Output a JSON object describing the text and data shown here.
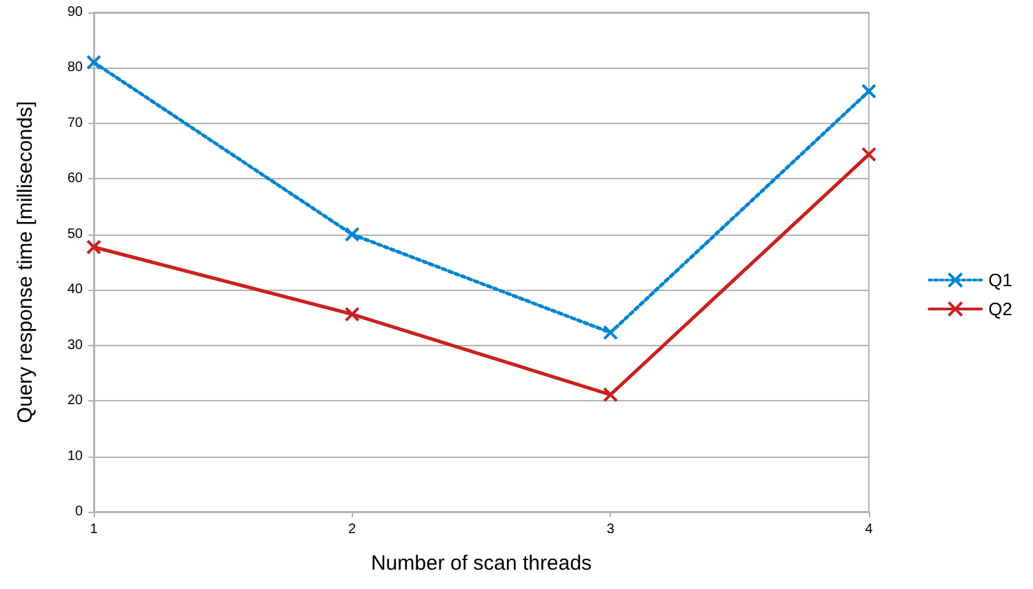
{
  "chart_data": {
    "type": "line",
    "xlabel": "Number of scan threads",
    "ylabel": "Query response time [milliseconds]",
    "x": [
      1,
      2,
      3,
      4
    ],
    "xlim": [
      1,
      4
    ],
    "xticks": [
      1,
      2,
      3,
      4
    ],
    "ylim": [
      0,
      90
    ],
    "yticks": [
      0,
      10,
      20,
      30,
      40,
      50,
      60,
      70,
      80,
      90
    ],
    "series": [
      {
        "name": "Q1",
        "color": "#0084d1",
        "values": [
          81,
          50,
          32.3,
          75.8
        ],
        "line_style": "dotted"
      },
      {
        "name": "Q2",
        "color": "#c9211e",
        "values": [
          47.7,
          35.6,
          21.1,
          64.4
        ],
        "line_style": "solid"
      }
    ],
    "marker": "cross",
    "grid": "y",
    "legend": "right"
  }
}
